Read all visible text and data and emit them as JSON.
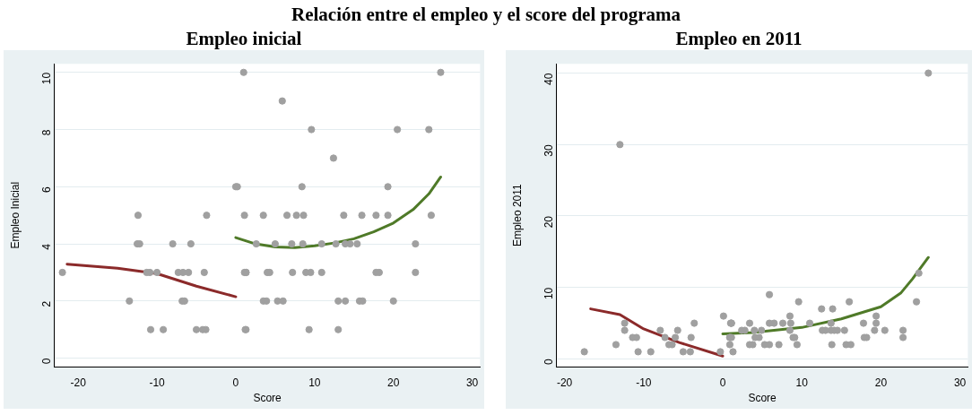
{
  "chart_data": [
    {
      "type": "scatter",
      "title": "Relación entre el empleo y el score del programa",
      "subtitle": "Empleo inicial",
      "xlabel": "Score",
      "ylabel": "Empleo Inicial",
      "xlim": [
        -23,
        31
      ],
      "xticks": [
        -20,
        -10,
        0,
        10,
        20,
        30
      ],
      "ylim": [
        -0.3,
        10.3
      ],
      "yticks": [
        0,
        2,
        4,
        6,
        8,
        10
      ],
      "grid": "y",
      "marker": "circle",
      "series": [
        {
          "type": "scatter",
          "color": "#a0a0a0",
          "x": [
            -22.0,
            -12.4,
            -12.5,
            -12.2,
            -8.0,
            -5.7,
            -3.7,
            -11.3,
            -10.9,
            -10.0,
            -7.3,
            -6.7,
            -6.0,
            -4.0,
            -13.5,
            -6.8,
            -6.5,
            -10.8,
            -9.2,
            -5.0,
            -4.2,
            -3.8,
            0,
            0.2,
            1.0,
            1.1,
            1.1,
            1.2,
            1.3,
            26.0,
            5.9,
            9.6,
            20.5,
            24.5,
            12.4,
            8.4,
            19.3,
            3.5,
            6.5,
            7.7,
            8.6,
            13.7,
            16.0,
            17.8,
            19.3,
            24.8,
            2.6,
            5.0,
            7.1,
            8.5,
            10.9,
            12.7,
            13.9,
            14.5,
            15.4,
            22.8,
            1.3,
            4.0,
            4.3,
            7.2,
            8.9,
            9.5,
            10.9,
            17.8,
            18.2,
            22.8,
            3.5,
            3.9,
            5.3,
            6.0,
            13.0,
            13.9,
            15.7,
            16.1,
            20.0,
            1.3,
            9.3,
            13.0
          ],
          "values": [
            3,
            5,
            4,
            4,
            4,
            4,
            5,
            3,
            3,
            3,
            3,
            3,
            3,
            3,
            2,
            2,
            2,
            1,
            1,
            1,
            1,
            1,
            6,
            6,
            10,
            5,
            3,
            1,
            3,
            10,
            9,
            8,
            8,
            8,
            7,
            6,
            6,
            5,
            5,
            5,
            5,
            5,
            5,
            5,
            5,
            5,
            4,
            4,
            4,
            4,
            4,
            4,
            4,
            4,
            4,
            4,
            3,
            3,
            3,
            3,
            3,
            3,
            3,
            3,
            3,
            3,
            2,
            2,
            2,
            2,
            2,
            2,
            2,
            2,
            2,
            1,
            1,
            1
          ]
        },
        {
          "type": "line",
          "color": "#8b2a2a",
          "marker": "none",
          "x": [
            -21.4,
            -15,
            -10,
            -5,
            0
          ],
          "values": [
            3.29,
            3.15,
            2.96,
            2.52,
            2.15
          ]
        },
        {
          "type": "line",
          "color": "#4f7a28",
          "marker": "none",
          "x": [
            0,
            2.5,
            5,
            7.5,
            10,
            12.5,
            15,
            17.5,
            20,
            22.5,
            24.5,
            26
          ],
          "values": [
            4.22,
            4.0,
            3.89,
            3.87,
            3.93,
            4.03,
            4.18,
            4.42,
            4.73,
            5.2,
            5.75,
            6.34
          ]
        }
      ]
    },
    {
      "type": "scatter",
      "title": "Empleo en 2011",
      "xlabel": "Score",
      "ylabel": "Empleo 2011",
      "xlim": [
        -21,
        31
      ],
      "xticks": [
        -20,
        -10,
        0,
        10,
        20,
        30
      ],
      "ylim": [
        -1.1,
        41.3
      ],
      "yticks": [
        0,
        10,
        20,
        30,
        40
      ],
      "grid": "y",
      "marker": "circle",
      "series": [
        {
          "type": "scatter",
          "color": "#a0a0a0",
          "x": [
            -17.5,
            -13.0,
            -13.5,
            -12.4,
            -12.4,
            -11.4,
            -10.9,
            -10.7,
            -9.1,
            -7.9,
            -7.3,
            -6.8,
            -6.4,
            -6.0,
            -5.7,
            -5.0,
            -4.1,
            -4.0,
            -3.6,
            -0.3,
            0.1,
            0.9,
            1.0,
            0.9,
            1.1,
            26.0,
            24.8,
            24.5,
            1.1,
            1.1,
            0.9,
            1.3,
            5.9,
            9.6,
            12.5,
            13.9,
            16.0,
            8.5,
            19.4,
            3.4,
            5.9,
            6.5,
            7.6,
            8.6,
            11.0,
            13.7,
            17.8,
            19.4,
            2.4,
            2.8,
            4.0,
            4.9,
            8.5,
            12.6,
            13.0,
            13.7,
            14.1,
            14.5,
            15.4,
            19.2,
            20.5,
            22.8,
            4.1,
            4.6,
            8.9,
            9.1,
            17.9,
            18.2,
            22.8,
            3.4,
            3.8,
            5.3,
            5.9,
            7.1,
            9.4,
            13.8,
            15.6,
            16.2
          ],
          "values": [
            1,
            30,
            2,
            5,
            4,
            3,
            3,
            1,
            1,
            4,
            3,
            2,
            2,
            3,
            4,
            1,
            1,
            3,
            5,
            1,
            6,
            3,
            5,
            2,
            5,
            40,
            12,
            8,
            5,
            3,
            3,
            1,
            9,
            8,
            7,
            7,
            8,
            6,
            6,
            5,
            5,
            5,
            5,
            5,
            5,
            5,
            5,
            5,
            4,
            4,
            4,
            4,
            4,
            4,
            4,
            4,
            4,
            4,
            4,
            4,
            4,
            4,
            3,
            3,
            3,
            3,
            3,
            3,
            3,
            2,
            2,
            2,
            2,
            2,
            2,
            2,
            2,
            2
          ]
        },
        {
          "type": "line",
          "color": "#8b2a2a",
          "marker": "none",
          "x": [
            -16.7,
            -13.0,
            -10,
            -5.5,
            0
          ],
          "values": [
            7.0,
            6.2,
            4.2,
            2.3,
            0.4
          ]
        },
        {
          "type": "line",
          "color": "#4f7a28",
          "marker": "none",
          "x": [
            0,
            3.8,
            10,
            15,
            20,
            22.5,
            24,
            26
          ],
          "values": [
            3.5,
            3.7,
            4.4,
            5.6,
            7.3,
            9.2,
            11.2,
            14.2
          ]
        }
      ]
    }
  ]
}
